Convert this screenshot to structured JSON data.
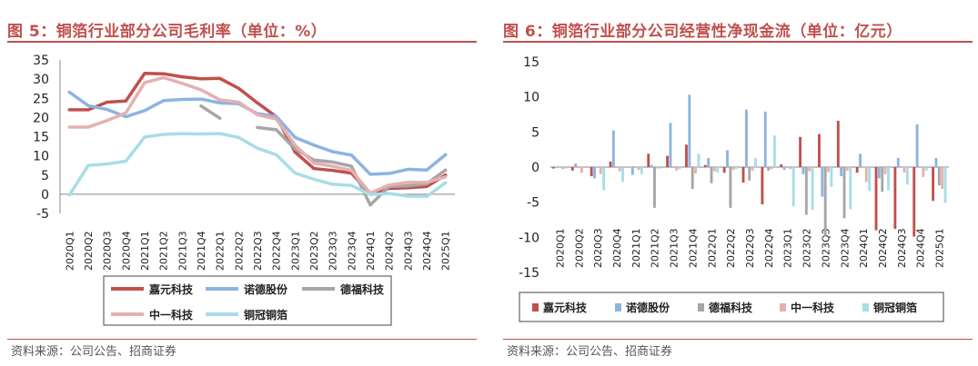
{
  "left": {
    "title": "图 5：铜箔行业部分公司毛利率（单位：%）",
    "source": "资料来源：公司公告、招商证券",
    "chart_data": {
      "type": "line",
      "categories": [
        "2020Q1",
        "2020Q2",
        "2020Q3",
        "2020Q4",
        "2021Q1",
        "2021Q2",
        "2021Q3",
        "2021Q4",
        "2022Q1",
        "2022Q2",
        "2022Q3",
        "2022Q4",
        "2023Q1",
        "2023Q2",
        "2023Q3",
        "2023Q4",
        "2024Q1",
        "2024Q2",
        "2024Q3",
        "2024Q4",
        "2025Q1"
      ],
      "ylim": [
        -5,
        35
      ],
      "yticks": [
        -5,
        0,
        5,
        10,
        15,
        20,
        25,
        30,
        35
      ],
      "series": [
        {
          "name": "嘉元科技",
          "color": "#c0504d",
          "width": 3.5,
          "values": [
            22,
            22,
            24,
            24.3,
            31.5,
            31.4,
            30.6,
            30.1,
            30.2,
            27.6,
            23.8,
            20.2,
            11,
            6.7,
            6.2,
            5.5,
            0.2,
            1.5,
            1.7,
            2,
            5
          ]
        },
        {
          "name": "诺德股份",
          "color": "#8db3e2",
          "width": 3.5,
          "values": [
            26.6,
            23.1,
            22.1,
            20.2,
            21.8,
            24.4,
            24.7,
            24.8,
            23.8,
            23.6,
            21,
            20.3,
            14.8,
            12.8,
            11.1,
            10.2,
            5.2,
            5.4,
            6.5,
            6.3,
            10.3
          ]
        },
        {
          "name": "德福科技",
          "color": "#a6a6a6",
          "width": 3.5,
          "values": [
            null,
            null,
            null,
            null,
            null,
            null,
            null,
            23,
            19.8,
            null,
            17.4,
            16.8,
            11.8,
            8.9,
            8.4,
            7.3,
            -2.8,
            2,
            2.2,
            2.7,
            6.3
          ]
        },
        {
          "name": "中一科技",
          "color": "#e6b0b0",
          "width": 3.5,
          "values": [
            17.5,
            17.5,
            19.2,
            21.2,
            29.1,
            30.4,
            28.9,
            27.2,
            24.6,
            24,
            20.7,
            19.6,
            12.8,
            8.1,
            7.3,
            6.2,
            0.3,
            2.4,
            3.1,
            3.1,
            4.5
          ]
        },
        {
          "name": "铜冠铜箔",
          "color": "#a8dde6",
          "width": 3.5,
          "values": [
            -0.2,
            7.5,
            7.9,
            8.6,
            14.9,
            15.6,
            15.8,
            15.7,
            15.8,
            14.8,
            12,
            10.3,
            5.5,
            3.9,
            2.6,
            2.3,
            -0.1,
            0.2,
            -0.5,
            -0.6,
            3
          ]
        }
      ],
      "legend_position": "bottom"
    }
  },
  "right": {
    "title": "图 6：铜箔行业部分公司经营性净现金流（单位：亿元）",
    "source": "资料来源：公司公告、招商证券",
    "chart_data": {
      "type": "bar",
      "categories": [
        "2020Q1",
        "2020Q2",
        "2020Q3",
        "2020Q4",
        "2021Q1",
        "2021Q2",
        "2021Q3",
        "2021Q4",
        "2022Q1",
        "2022Q2",
        "2022Q3",
        "2022Q4",
        "2023Q1",
        "2023Q2",
        "2023Q3",
        "2023Q4",
        "2024Q1",
        "2024Q2",
        "2024Q3",
        "2024Q4",
        "2025Q1"
      ],
      "ylim": [
        -15,
        15
      ],
      "yticks": [
        -15,
        -10,
        -5,
        0,
        5,
        10,
        15
      ],
      "series": [
        {
          "name": "嘉元科技",
          "color": "#c0504d",
          "values": [
            -0.2,
            -0.5,
            -1.3,
            0.8,
            0,
            1.9,
            1.6,
            3.2,
            0.3,
            -0.8,
            -2.2,
            -5.3,
            0.4,
            4.3,
            4.7,
            6.6,
            -0.8,
            -9,
            -8.8,
            -9.9,
            -4.8
          ]
        },
        {
          "name": "诺德股份",
          "color": "#8db3e2",
          "values": [
            0,
            0.5,
            -1.6,
            5.2,
            -1.1,
            0.3,
            6.3,
            10.3,
            1.3,
            2.4,
            8.2,
            7.9,
            -0.4,
            -1,
            -4.2,
            -1.3,
            1.9,
            -1.6,
            1.3,
            6.1,
            1.3
          ]
        },
        {
          "name": "德福科技",
          "color": "#a6a6a6",
          "values": [
            0,
            0,
            0,
            0,
            0,
            -5.8,
            0,
            -3.1,
            -2.3,
            -5.8,
            -1.9,
            -0.5,
            0,
            -6.8,
            -9.8,
            -7.3,
            0,
            -3.5,
            0,
            0,
            -2.6
          ]
        },
        {
          "name": "中一科技",
          "color": "#e6b0b0",
          "values": [
            -0.3,
            -0.8,
            -1,
            -0.6,
            -0.4,
            -0.2,
            -0.5,
            -0.9,
            -0.6,
            -0.4,
            -0.5,
            -0.3,
            -0.3,
            -0.6,
            -0.7,
            -0.5,
            -2.1,
            -1,
            -0.8,
            -1.4,
            -3.1
          ]
        },
        {
          "name": "铜冠铜箔",
          "color": "#a8dde6",
          "values": [
            -0.2,
            0,
            -3.3,
            -2.1,
            -1,
            -0.2,
            -0.3,
            1.9,
            -0.8,
            -0.3,
            1.3,
            4.5,
            -5.6,
            -6.1,
            -2.8,
            -6,
            -3.4,
            -3.3,
            -2.5,
            -0.5,
            -5.1
          ]
        }
      ],
      "legend_position": "bottom"
    }
  }
}
